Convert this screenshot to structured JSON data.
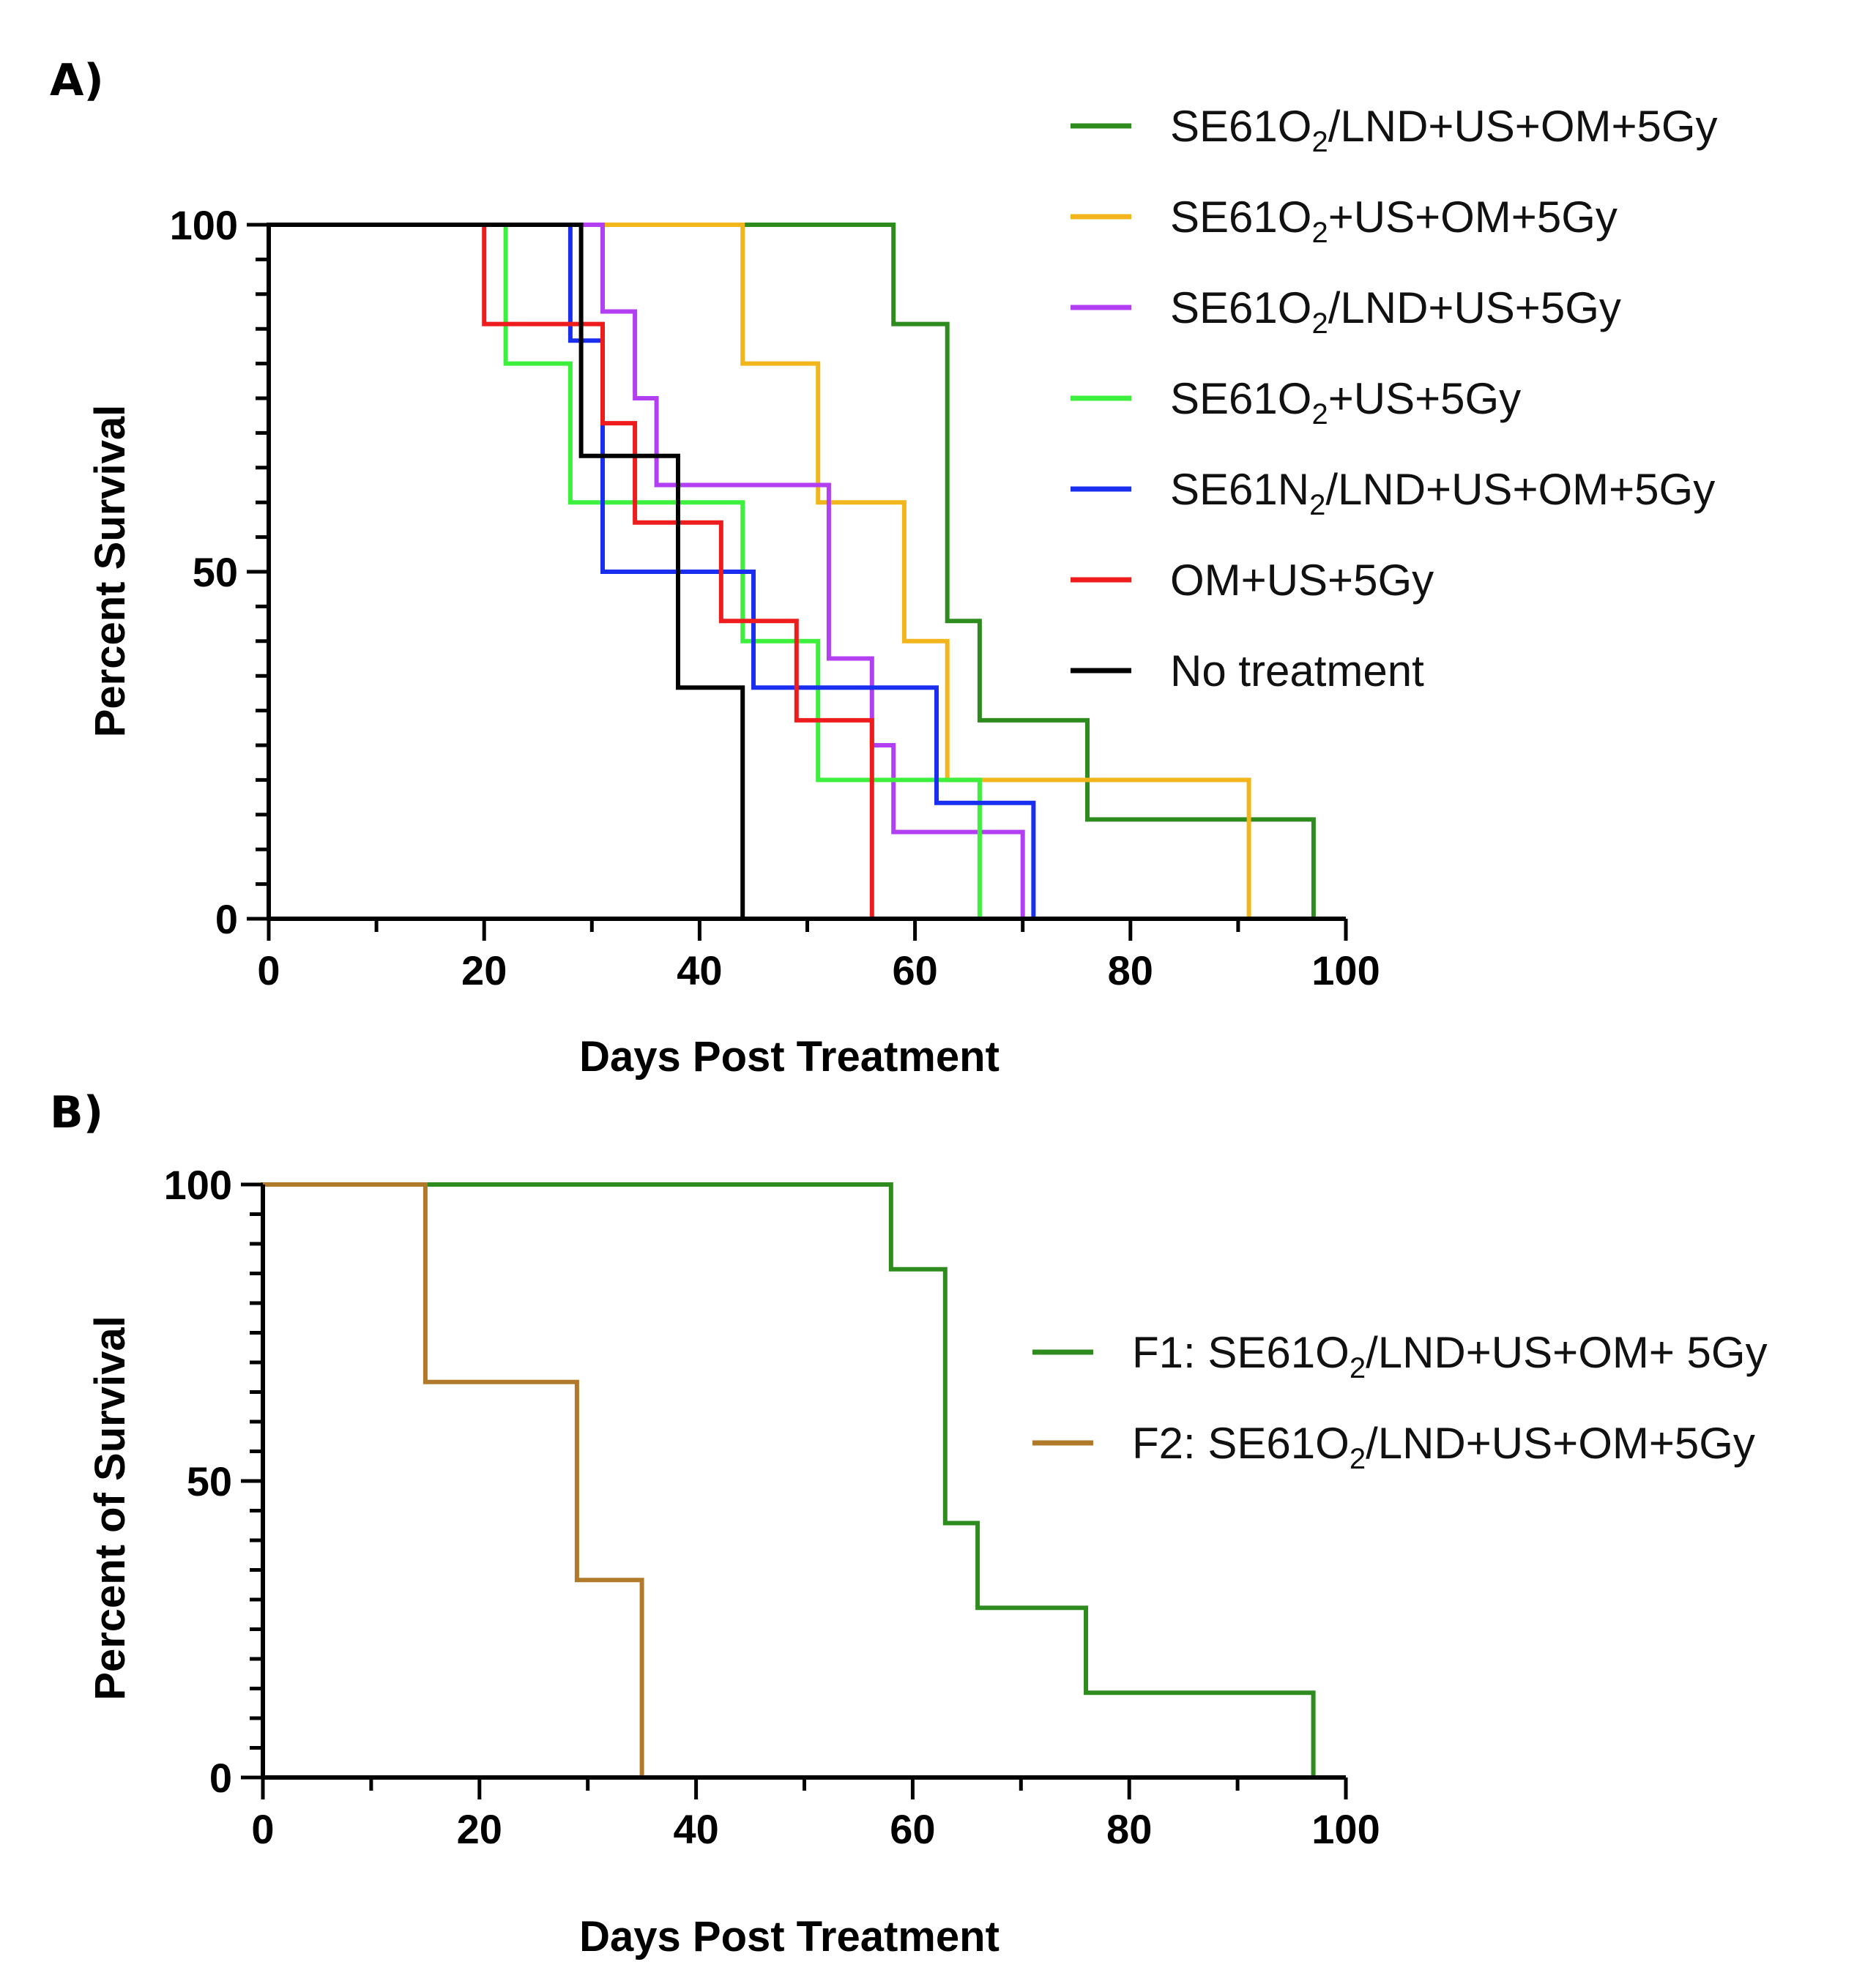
{
  "figure": {
    "panels": [
      {
        "label": "A)",
        "chart_data": {
          "type": "line",
          "subtype": "kaplan-meier step",
          "xlabel": "Days Post Treatment",
          "ylabel": "Percent Survival",
          "xlim": [
            0,
            100
          ],
          "ylim": [
            0,
            100
          ],
          "xticks": [
            0,
            20,
            40,
            60,
            80,
            100
          ],
          "yticks": [
            0,
            50,
            100
          ],
          "grid": false,
          "legend_position": "top-right",
          "series": [
            {
              "name": "SE61O2/LND+US+OM+5Gy",
              "legend": {
                "pre": "SE61O",
                "sub": "2",
                "post": "/LND+US+OM+5Gy"
              },
              "color": "#2e8b1e",
              "points": [
                [
                  0,
                  100
                ],
                [
                  58,
                  100
                ],
                [
                  58,
                  85.7
                ],
                [
                  63,
                  85.7
                ],
                [
                  63,
                  42.9
                ],
                [
                  66,
                  42.9
                ],
                [
                  66,
                  28.6
                ],
                [
                  76,
                  28.6
                ],
                [
                  76,
                  14.3
                ],
                [
                  97,
                  14.3
                ],
                [
                  97,
                  0
                ]
              ]
            },
            {
              "name": "SE61O2+US+OM+5Gy",
              "legend": {
                "pre": "SE61O",
                "sub": "2",
                "post": "+US+OM+5Gy"
              },
              "color": "#f2b51c",
              "points": [
                [
                  0,
                  100
                ],
                [
                  44,
                  100
                ],
                [
                  44,
                  80
                ],
                [
                  51,
                  80
                ],
                [
                  51,
                  60
                ],
                [
                  59,
                  60
                ],
                [
                  59,
                  40
                ],
                [
                  63,
                  40
                ],
                [
                  63,
                  20
                ],
                [
                  91,
                  20
                ],
                [
                  91,
                  0
                ]
              ]
            },
            {
              "name": "SE61O2/LND+US+5Gy",
              "legend": {
                "pre": "SE61O",
                "sub": "2",
                "post": "/LND+US+5Gy"
              },
              "color": "#b33ff2",
              "points": [
                [
                  0,
                  100
                ],
                [
                  31,
                  100
                ],
                [
                  31,
                  87.5
                ],
                [
                  34,
                  87.5
                ],
                [
                  34,
                  75
                ],
                [
                  36,
                  75
                ],
                [
                  36,
                  62.5
                ],
                [
                  52,
                  62.5
                ],
                [
                  52,
                  37.5
                ],
                [
                  56,
                  37.5
                ],
                [
                  56,
                  25
                ],
                [
                  58,
                  25
                ],
                [
                  58,
                  12.5
                ],
                [
                  70,
                  12.5
                ],
                [
                  70,
                  0
                ]
              ]
            },
            {
              "name": "SE61O2+US+5Gy",
              "legend": {
                "pre": "SE61O",
                "sub": "2",
                "post": "+US+5Gy"
              },
              "color": "#3df03d",
              "points": [
                [
                  0,
                  100
                ],
                [
                  22,
                  100
                ],
                [
                  22,
                  80
                ],
                [
                  28,
                  80
                ],
                [
                  28,
                  60
                ],
                [
                  44,
                  60
                ],
                [
                  44,
                  40
                ],
                [
                  51,
                  40
                ],
                [
                  51,
                  20
                ],
                [
                  66,
                  20
                ],
                [
                  66,
                  0
                ]
              ]
            },
            {
              "name": "SE61N2/LND+US+OM+5Gy",
              "legend": {
                "pre": "SE61N",
                "sub": "2",
                "post": "/LND+US+OM+5Gy"
              },
              "color": "#1a2ef0",
              "points": [
                [
                  0,
                  100
                ],
                [
                  28,
                  100
                ],
                [
                  28,
                  83.3
                ],
                [
                  31,
                  83.3
                ],
                [
                  31,
                  50
                ],
                [
                  45,
                  50
                ],
                [
                  45,
                  33.3
                ],
                [
                  62,
                  33.3
                ],
                [
                  62,
                  16.7
                ],
                [
                  71,
                  16.7
                ],
                [
                  71,
                  0
                ]
              ]
            },
            {
              "name": "OM+US+5Gy",
              "legend": {
                "pre": "OM+US+5Gy",
                "sub": "",
                "post": ""
              },
              "color": "#ee1c1c",
              "points": [
                [
                  0,
                  100
                ],
                [
                  20,
                  100
                ],
                [
                  20,
                  85.7
                ],
                [
                  31,
                  85.7
                ],
                [
                  31,
                  71.4
                ],
                [
                  34,
                  71.4
                ],
                [
                  34,
                  57.1
                ],
                [
                  42,
                  57.1
                ],
                [
                  42,
                  42.9
                ],
                [
                  49,
                  42.9
                ],
                [
                  49,
                  28.6
                ],
                [
                  56,
                  28.6
                ],
                [
                  56,
                  0
                ]
              ]
            },
            {
              "name": "No treatment",
              "legend": {
                "pre": "No treatment",
                "sub": "",
                "post": ""
              },
              "color": "#000000",
              "points": [
                [
                  0,
                  100
                ],
                [
                  29,
                  100
                ],
                [
                  29,
                  66.7
                ],
                [
                  38,
                  66.7
                ],
                [
                  38,
                  33.3
                ],
                [
                  44,
                  33.3
                ],
                [
                  44,
                  0
                ]
              ]
            }
          ]
        }
      },
      {
        "label": "B)",
        "chart_data": {
          "type": "line",
          "subtype": "kaplan-meier step",
          "xlabel": "Days Post Treatment",
          "ylabel": "Percent of Survival",
          "xlim": [
            0,
            100
          ],
          "ylim": [
            0,
            100
          ],
          "xticks": [
            0,
            20,
            40,
            60,
            80,
            100
          ],
          "yticks": [
            0,
            50,
            100
          ],
          "grid": false,
          "legend_position": "right",
          "series": [
            {
              "name": "F1: SE61O2/LND+US+OM+ 5Gy",
              "legend": {
                "pre": "F1: SE61O",
                "sub": "2",
                "post": "/LND+US+OM+ 5Gy"
              },
              "color": "#2e8b1e",
              "points": [
                [
                  0,
                  100
                ],
                [
                  58,
                  100
                ],
                [
                  58,
                  85.7
                ],
                [
                  63,
                  85.7
                ],
                [
                  63,
                  42.9
                ],
                [
                  66,
                  42.9
                ],
                [
                  66,
                  28.6
                ],
                [
                  76,
                  28.6
                ],
                [
                  76,
                  14.3
                ],
                [
                  97,
                  14.3
                ],
                [
                  97,
                  0
                ]
              ]
            },
            {
              "name": "F2: SE61O2/LND+US+OM+5Gy",
              "legend": {
                "pre": "F2: SE61O",
                "sub": "2",
                "post": "/LND+US+OM+5Gy"
              },
              "color": "#b07a2a",
              "points": [
                [
                  0,
                  100
                ],
                [
                  15,
                  100
                ],
                [
                  15,
                  66.7
                ],
                [
                  29,
                  66.7
                ],
                [
                  29,
                  33.3
                ],
                [
                  35,
                  33.3
                ],
                [
                  35,
                  0
                ]
              ]
            }
          ]
        }
      }
    ]
  }
}
